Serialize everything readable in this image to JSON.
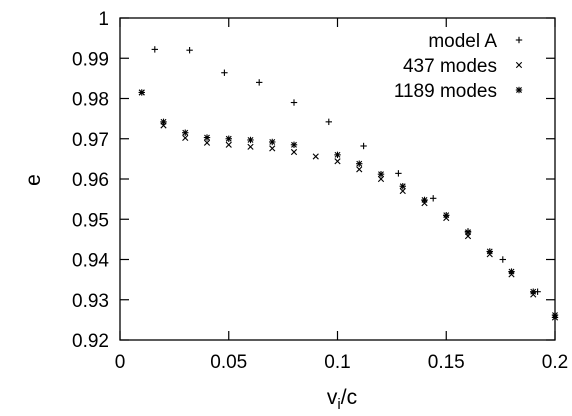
{
  "chart_data": {
    "type": "scatter",
    "xlabel": "v_i/c",
    "ylabel": "e",
    "xlim": [
      0,
      0.2
    ],
    "ylim": [
      0.92,
      1
    ],
    "xticks": [
      "0",
      "0.05",
      "0.1",
      "0.15",
      "0.2"
    ],
    "yticks": [
      "0.92",
      "0.93",
      "0.94",
      "0.95",
      "0.96",
      "0.97",
      "0.98",
      "0.99",
      "1"
    ],
    "grid": false,
    "legend": "top-right",
    "series": [
      {
        "name": "model A",
        "marker": "plus",
        "points": [
          [
            0.016,
            0.9922
          ],
          [
            0.032,
            0.992
          ],
          [
            0.048,
            0.9864
          ],
          [
            0.064,
            0.984
          ],
          [
            0.08,
            0.979
          ],
          [
            0.096,
            0.9742
          ],
          [
            0.112,
            0.9682
          ],
          [
            0.128,
            0.9614
          ],
          [
            0.144,
            0.9552
          ],
          [
            0.16,
            0.947
          ],
          [
            0.176,
            0.94
          ],
          [
            0.192,
            0.932
          ],
          [
            0.2,
            0.9256
          ]
        ]
      },
      {
        "name": "437 modes",
        "marker": "cross",
        "points": [
          [
            0.01,
            0.9815
          ],
          [
            0.02,
            0.9733
          ],
          [
            0.03,
            0.9702
          ],
          [
            0.04,
            0.969
          ],
          [
            0.05,
            0.9685
          ],
          [
            0.06,
            0.968
          ],
          [
            0.07,
            0.9676
          ],
          [
            0.08,
            0.9667
          ],
          [
            0.09,
            0.9656
          ],
          [
            0.1,
            0.9644
          ],
          [
            0.11,
            0.9624
          ],
          [
            0.12,
            0.96
          ],
          [
            0.13,
            0.957
          ],
          [
            0.14,
            0.954
          ],
          [
            0.15,
            0.9503
          ],
          [
            0.16,
            0.9458
          ],
          [
            0.17,
            0.9413
          ],
          [
            0.18,
            0.9363
          ],
          [
            0.19,
            0.9313
          ],
          [
            0.2,
            0.9256
          ]
        ]
      },
      {
        "name": "1189 modes",
        "marker": "asterisk",
        "points": [
          [
            0.01,
            0.9815
          ],
          [
            0.02,
            0.9742
          ],
          [
            0.03,
            0.9715
          ],
          [
            0.04,
            0.9703
          ],
          [
            0.05,
            0.97
          ],
          [
            0.06,
            0.9697
          ],
          [
            0.07,
            0.9692
          ],
          [
            0.08,
            0.9685
          ],
          [
            0.1,
            0.966
          ],
          [
            0.11,
            0.9638
          ],
          [
            0.12,
            0.9612
          ],
          [
            0.13,
            0.9582
          ],
          [
            0.14,
            0.9548
          ],
          [
            0.15,
            0.951
          ],
          [
            0.16,
            0.9468
          ],
          [
            0.17,
            0.942
          ],
          [
            0.18,
            0.937
          ],
          [
            0.19,
            0.932
          ],
          [
            0.2,
            0.9262
          ]
        ]
      }
    ]
  }
}
